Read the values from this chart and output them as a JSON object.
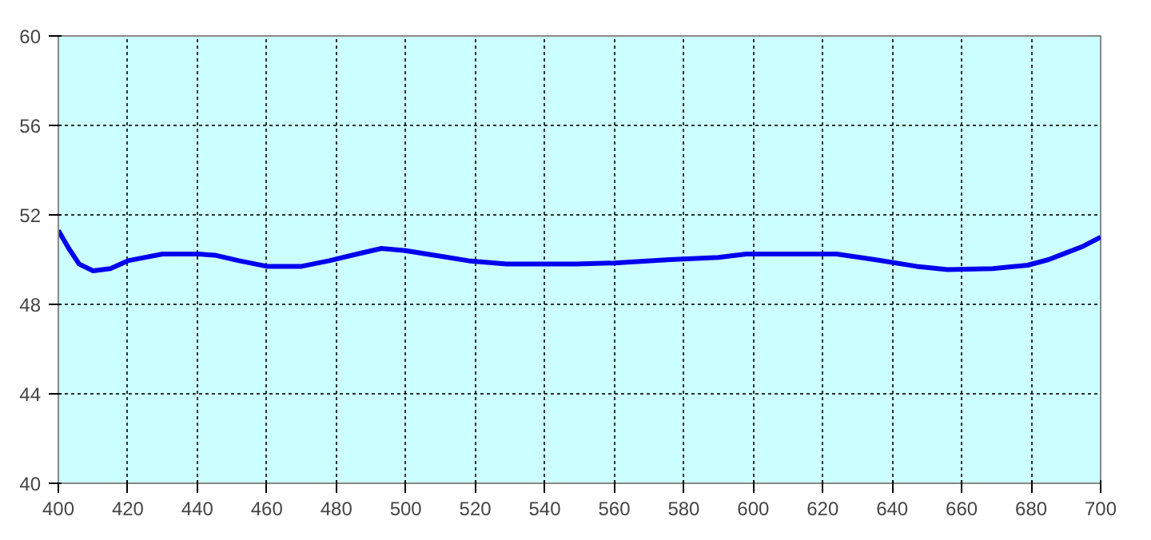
{
  "chart_data": {
    "type": "line",
    "x": [
      400,
      403,
      406,
      410,
      415,
      420,
      430,
      440,
      445,
      452,
      460,
      470,
      478,
      486,
      493,
      500,
      510,
      518,
      529,
      540,
      549,
      560,
      576,
      590,
      598,
      610,
      624,
      635,
      647,
      656,
      669,
      679,
      685,
      690,
      695,
      700
    ],
    "series": [
      {
        "color": "#0000ee",
        "values": [
          51.3,
          50.5,
          49.8,
          49.5,
          49.6,
          49.95,
          50.25,
          50.25,
          50.2,
          49.95,
          49.7,
          49.7,
          49.95,
          50.25,
          50.5,
          50.4,
          50.15,
          49.95,
          49.8,
          49.8,
          49.8,
          49.85,
          50.0,
          50.1,
          50.25,
          50.25,
          50.25,
          50.0,
          49.7,
          49.55,
          49.6,
          49.75,
          50.0,
          50.3,
          50.6,
          51.0
        ]
      }
    ],
    "xlim": [
      400,
      700
    ],
    "ylim": [
      40,
      60
    ],
    "xticks": [
      400,
      420,
      440,
      460,
      480,
      500,
      520,
      540,
      560,
      580,
      600,
      620,
      640,
      660,
      680,
      700
    ],
    "yticks": [
      40,
      44,
      48,
      52,
      56,
      60
    ],
    "grid": true,
    "line_style": "solid",
    "marker": "none"
  }
}
